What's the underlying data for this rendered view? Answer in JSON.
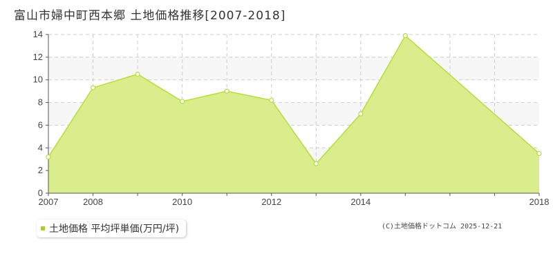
{
  "title": "富山市婦中町西本郷 土地価格推移[2007-2018]",
  "legend_label": "土地価格 平均坪単価(万円/坪)",
  "credit": "(C)土地価格ドットコム 2025-12-21",
  "colors": {
    "fill": "#d9ed8c",
    "line": "#b5dd3c",
    "grid": "#cccccc",
    "band": "#f7f7f7",
    "swatch": "#a8d12f"
  },
  "chart_data": {
    "type": "area",
    "x": [
      2007,
      2008,
      2009,
      2010,
      2011,
      2012,
      2013,
      2014,
      2015,
      2016,
      2017,
      2018
    ],
    "series": [
      {
        "name": "土地価格 平均坪単価(万円/坪)",
        "values": [
          3.2,
          9.3,
          10.5,
          8.1,
          9.0,
          8.2,
          2.6,
          7.0,
          13.9,
          null,
          null,
          3.5
        ]
      }
    ],
    "x_tick_labels": [
      "2007",
      "2008",
      "2010",
      "2012",
      "2014",
      "2018"
    ],
    "y_tick_labels": [
      "0",
      "2",
      "4",
      "6",
      "8",
      "10",
      "12",
      "14"
    ],
    "xlim": [
      2007,
      2018
    ],
    "ylim": [
      0,
      14
    ],
    "grid": true,
    "legend_position": "bottom-left"
  }
}
